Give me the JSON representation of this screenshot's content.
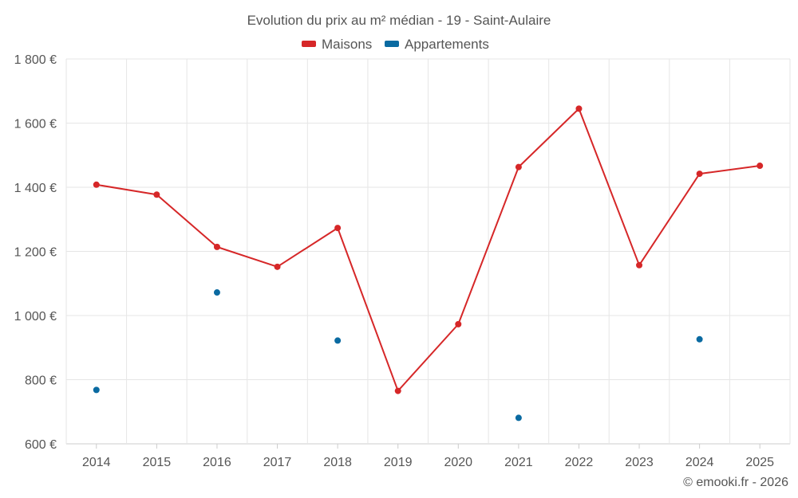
{
  "chart_data": {
    "type": "line",
    "title": "Evolution du prix au m² médian - 19 - Saint-Aulaire",
    "categories": [
      "2014",
      "2015",
      "2016",
      "2017",
      "2018",
      "2019",
      "2020",
      "2021",
      "2022",
      "2023",
      "2024",
      "2025"
    ],
    "ylim": [
      600,
      1800
    ],
    "yticks": [
      600,
      800,
      1000,
      1200,
      1400,
      1600,
      1800
    ],
    "ytick_labels": [
      "600 €",
      "800 €",
      "1 000 €",
      "1 200 €",
      "1 400 €",
      "1 600 €",
      "1 800 €"
    ],
    "grid": true,
    "legend_position": "top-center",
    "series": [
      {
        "name": "Maisons",
        "color": "#d62728",
        "style": "line-markers",
        "values": [
          1408,
          1377,
          1214,
          1152,
          1273,
          765,
          973,
          1463,
          1645,
          1157,
          1442,
          1467
        ]
      },
      {
        "name": "Appartements",
        "color": "#0a6aa1",
        "style": "markers",
        "values": [
          768,
          null,
          1072,
          null,
          922,
          null,
          null,
          681,
          null,
          null,
          926,
          null
        ]
      }
    ]
  },
  "credit": "© emooki.fr - 2026"
}
